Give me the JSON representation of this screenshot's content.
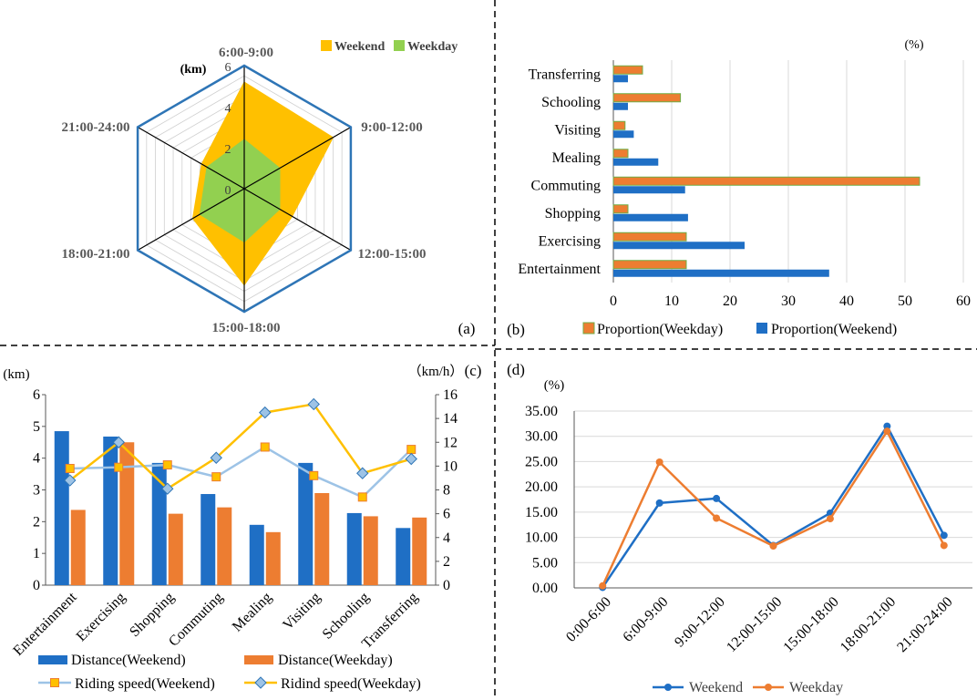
{
  "chart_data": [
    {
      "panel": "(a)",
      "type": "radar",
      "unit": "(km)",
      "categories": [
        "6:00-9:00",
        "9:00-12:00",
        "12:00-15:00",
        "15:00-18:00",
        "18:00-21:00",
        "21:00-24:00"
      ],
      "ticks": [
        0,
        2,
        4,
        6
      ],
      "ylim": [
        0,
        6
      ],
      "series": [
        {
          "name": "Weekend",
          "color": "#FFC000",
          "values": [
            5.2,
            5.0,
            2.7,
            4.7,
            2.9,
            2.4
          ]
        },
        {
          "name": "Weekday",
          "color": "#92D050",
          "values": [
            2.4,
            2.0,
            2.0,
            2.6,
            2.5,
            2.1
          ]
        }
      ]
    },
    {
      "panel": "(b)",
      "type": "bar",
      "orientation": "horizontal",
      "unit": "(%)",
      "categories": [
        "Entertainment",
        "Exercising",
        "Shopping",
        "Commuting",
        "Mealing",
        "Visiting",
        "Schooling",
        "Transferring"
      ],
      "xticks": [
        0,
        10,
        20,
        30,
        40,
        50,
        60
      ],
      "xlim": [
        0,
        60
      ],
      "series": [
        {
          "name": "Proportion(Weekday)",
          "color": "#ED7D31",
          "edge": "#70AD47",
          "values": [
            12.5,
            12.5,
            2.5,
            52.5,
            2.5,
            2.0,
            11.5,
            5.0
          ]
        },
        {
          "name": "Proportion(Weekend)",
          "color": "#1F6FC5",
          "values": [
            37.0,
            22.5,
            12.8,
            12.3,
            7.7,
            3.5,
            2.5,
            2.5
          ]
        }
      ]
    },
    {
      "panel": "(c)",
      "type": "bar+line",
      "unit_left": "(km)",
      "unit_right": "（km/h）",
      "categories": [
        "Entertainment",
        "Exercising",
        "Shopping",
        "Commuting",
        "Mealing",
        "Visiting",
        "Schooling",
        "Transferring"
      ],
      "left_ticks": [
        0,
        1,
        2,
        3,
        4,
        5,
        6
      ],
      "right_ticks": [
        0,
        2,
        4,
        6,
        8,
        10,
        12,
        14,
        16
      ],
      "ylim_left": [
        0,
        6
      ],
      "ylim_right": [
        0,
        16
      ],
      "bars": [
        {
          "name": "Distance(Weekend)",
          "color": "#1F6FC5",
          "values": [
            4.85,
            4.68,
            3.85,
            2.87,
            1.9,
            3.85,
            2.27,
            1.8
          ]
        },
        {
          "name": "Distance(Weekday)",
          "color": "#ED7D31",
          "values": [
            2.37,
            4.5,
            2.25,
            2.45,
            1.67,
            2.9,
            2.17,
            2.13
          ]
        }
      ],
      "lines": [
        {
          "name": "Riding speed(Weekend)",
          "color": "#9DC3E6",
          "marker": "square",
          "marker_fill": "#FFC000",
          "marker_edge": "#ED7D31",
          "values": [
            9.8,
            9.9,
            10.1,
            9.1,
            11.6,
            9.2,
            7.4,
            11.4
          ]
        },
        {
          "name": "Ridind speed(Weekday)",
          "color": "#FFC000",
          "marker": "diamond",
          "marker_fill": "#9DC3E6",
          "marker_edge": "#2E75B6",
          "values": [
            8.8,
            12.0,
            8.1,
            10.7,
            14.5,
            15.2,
            9.4,
            10.6
          ]
        }
      ]
    },
    {
      "panel": "(d)",
      "type": "line",
      "unit": "(%)",
      "categories": [
        "0:00-6:00",
        "6:00-9:00",
        "9:00-12:00",
        "12:00-15:00",
        "15:00-18:00",
        "18:00-21:00",
        "21:00-24:00"
      ],
      "ticks": [
        "0.00",
        "5.00",
        "10.00",
        "15.00",
        "20.00",
        "25.00",
        "30.00",
        "35.00"
      ],
      "ylim": [
        0,
        35
      ],
      "series": [
        {
          "name": "Weekend",
          "color": "#1F6FC5",
          "values": [
            0.1,
            16.8,
            17.7,
            8.4,
            14.8,
            32.0,
            10.4
          ]
        },
        {
          "name": "Weekday",
          "color": "#ED7D31",
          "values": [
            0.4,
            24.9,
            13.8,
            8.3,
            13.7,
            31.0,
            8.4
          ]
        }
      ]
    }
  ]
}
